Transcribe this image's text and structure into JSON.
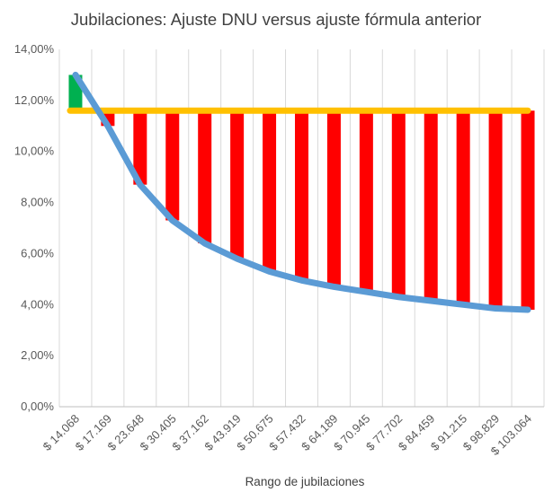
{
  "chart_data": {
    "type": "bar",
    "title": "Jubilaciones:  Ajuste DNU versus ajuste fórmula anterior",
    "xlabel": "Rango de jubilaciones",
    "ylabel": "",
    "ylim": [
      0,
      14
    ],
    "yticks": [
      0,
      2,
      4,
      6,
      8,
      10,
      12,
      14
    ],
    "ytick_labels": [
      "0,00%",
      "2,00%",
      "4,00%",
      "6,00%",
      "8,00%",
      "10,00%",
      "12,00%",
      "14,00%"
    ],
    "grid": "vertical",
    "categories": [
      "$ 14.068",
      "$ 17.169",
      "$ 23.648",
      "$ 30.405",
      "$ 37.162",
      "$ 43.919",
      "$ 50.675",
      "$ 57.432",
      "$ 64.189",
      "$ 70.945",
      "$ 77.702",
      "$ 84.459",
      "$ 91.215",
      "$ 98.829",
      "$ 103.064"
    ],
    "series": [
      {
        "name": "Ajuste fórmula anterior",
        "kind": "line",
        "color": "#ffc000",
        "values": [
          11.6,
          11.6,
          11.6,
          11.6,
          11.6,
          11.6,
          11.6,
          11.6,
          11.6,
          11.6,
          11.6,
          11.6,
          11.6,
          11.6,
          11.6
        ]
      },
      {
        "name": "Ajuste DNU",
        "kind": "line",
        "color": "#5b9bd5",
        "values": [
          13.0,
          11.0,
          8.7,
          7.3,
          6.4,
          5.8,
          5.3,
          4.95,
          4.7,
          4.5,
          4.3,
          4.15,
          4.0,
          3.85,
          3.8
        ]
      }
    ],
    "difference_bars": {
      "description": "Vertical bars spanning between the two series",
      "gain_color": "#00b050",
      "loss_color": "#ff0000"
    }
  }
}
